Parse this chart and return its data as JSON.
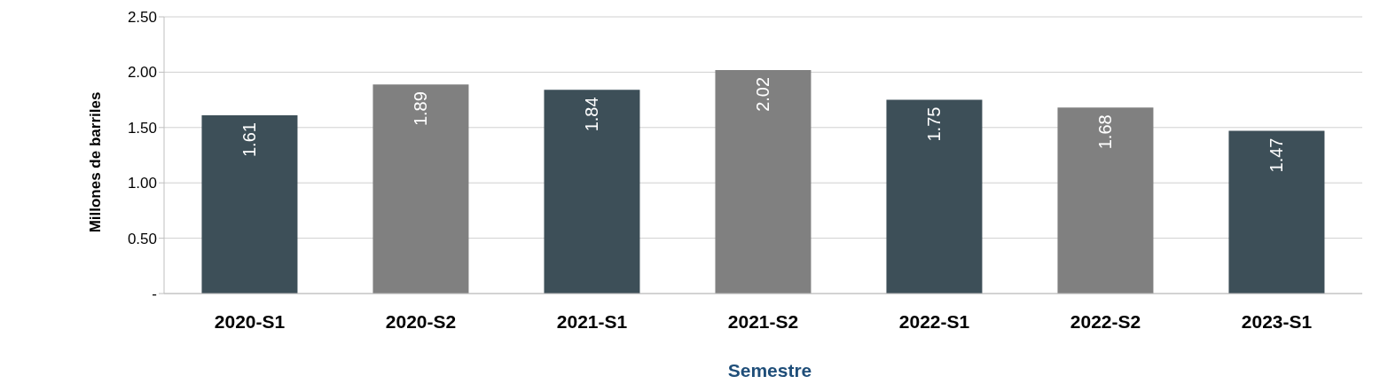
{
  "chart_data": {
    "type": "bar",
    "xlabel": "Semestre",
    "ylabel": "Millones de barriles",
    "categories": [
      "2020-S1",
      "2020-S2",
      "2021-S1",
      "2021-S2",
      "2022-S1",
      "2022-S2",
      "2023-S1"
    ],
    "values": [
      1.61,
      1.89,
      1.84,
      2.02,
      1.75,
      1.68,
      1.47
    ],
    "colors": [
      "#3d4f58",
      "#808080",
      "#3d4f58",
      "#808080",
      "#3d4f58",
      "#808080",
      "#3d4f58"
    ],
    "ylim": [
      0,
      2.5
    ],
    "yticks": [
      {
        "value": 0,
        "label": "-"
      },
      {
        "value": 0.5,
        "label": "0.50"
      },
      {
        "value": 1,
        "label": "1.00"
      },
      {
        "value": 1.5,
        "label": "1.50"
      },
      {
        "value": 2,
        "label": "2.00"
      },
      {
        "value": 2.5,
        "label": "2.50"
      }
    ],
    "grid": "y",
    "data_labels": true,
    "legend": false
  }
}
